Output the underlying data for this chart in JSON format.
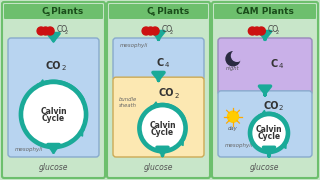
{
  "bg_color": "#c8e6c9",
  "panel_border_color": "#6dbf6d",
  "title_bg": "#6dbf6d",
  "teal": "#1aaa98",
  "panels": [
    {
      "title": "C",
      "title_sub": "3",
      "title_rest": " Plants",
      "type": "c3",
      "inner_color": "#b8d4f0",
      "inner_label": "mesophyll"
    },
    {
      "title": "C",
      "title_sub": "4",
      "title_rest": " Plants",
      "type": "c4",
      "meso_color": "#b8d4f0",
      "inner_color": "#fce8b2",
      "meso_label": "mesophyli",
      "inner_label": "bundle\nsheath",
      "c4_label": "C"
    },
    {
      "title": "CAM Plants",
      "title_sub": "",
      "title_rest": "",
      "type": "cam",
      "cam_top_color": "#c9b0e8",
      "inner_color": "#b8d4f0",
      "inner_label": "mesophyll",
      "c4_label": "C"
    }
  ]
}
